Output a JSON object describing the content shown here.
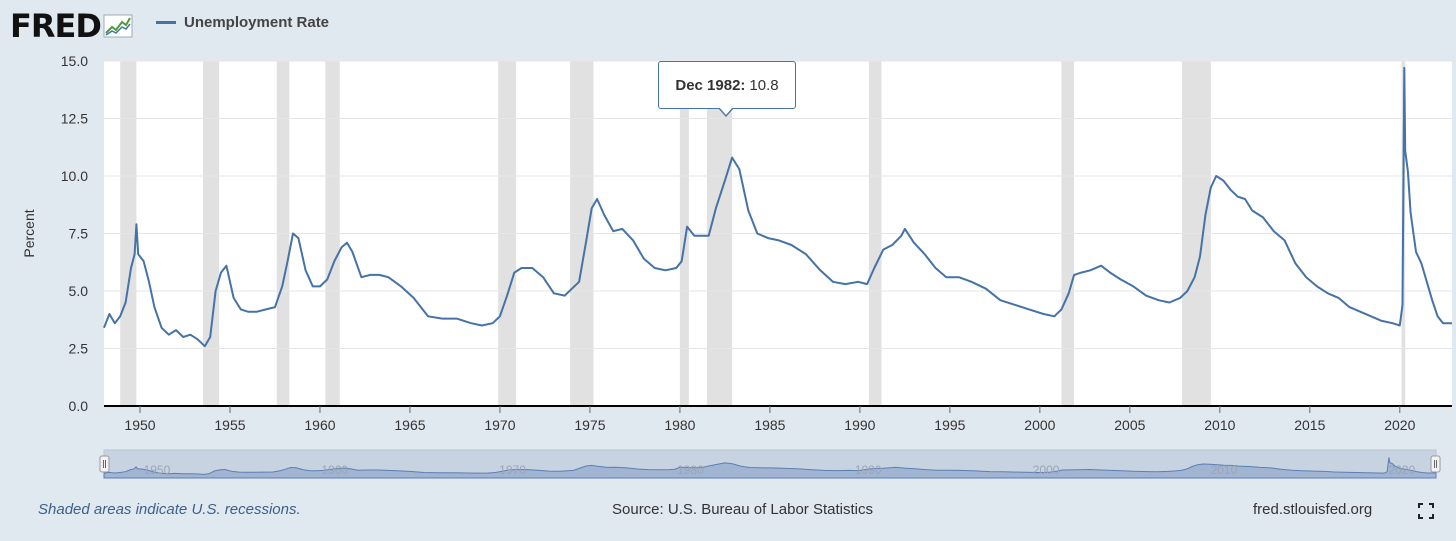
{
  "header": {
    "logo_text": "FRED",
    "series_legend": "Unemployment Rate",
    "series_color": "#4572a7"
  },
  "tooltip": {
    "date": "Dec 1982:",
    "value": "10.8"
  },
  "footer": {
    "note": "Shaded areas indicate U.S. recessions.",
    "source": "Source: U.S. Bureau of Labor Statistics",
    "site": "fred.stlouisfed.org"
  },
  "navigator": {
    "labels": [
      "1950",
      "1960",
      "1970",
      "1980",
      "1990",
      "2000",
      "2010",
      "2020"
    ]
  },
  "chart_data": {
    "type": "line",
    "title": "",
    "xlabel": "",
    "ylabel": "Percent",
    "xlim": [
      1948.0,
      2022.9
    ],
    "ylim": [
      0,
      15
    ],
    "yticks": [
      0.0,
      2.5,
      5.0,
      7.5,
      10.0,
      12.5,
      15.0
    ],
    "ytick_labels": [
      "0.0",
      "2.5",
      "5.0",
      "7.5",
      "10.0",
      "12.5",
      "15.0"
    ],
    "xticks": [
      1950,
      1955,
      1960,
      1965,
      1970,
      1975,
      1980,
      1985,
      1990,
      1995,
      2000,
      2005,
      2010,
      2015,
      2020
    ],
    "grid": true,
    "legend": "top-left",
    "recessions": [
      [
        1948.9,
        1949.8
      ],
      [
        1953.5,
        1954.4
      ],
      [
        1957.6,
        1958.3
      ],
      [
        1960.3,
        1961.1
      ],
      [
        1969.9,
        1970.9
      ],
      [
        1973.9,
        1975.2
      ],
      [
        1980.0,
        1980.5
      ],
      [
        1981.5,
        1982.9
      ],
      [
        1990.5,
        1991.2
      ],
      [
        2001.2,
        2001.9
      ],
      [
        2007.9,
        2009.5
      ],
      [
        2020.1,
        2020.3
      ]
    ],
    "series": [
      {
        "name": "Unemployment Rate",
        "x": [
          1948.0,
          1948.3,
          1948.6,
          1948.9,
          1949.2,
          1949.5,
          1949.7,
          1949.8,
          1949.9,
          1950.2,
          1950.5,
          1950.8,
          1951.2,
          1951.6,
          1952.0,
          1952.4,
          1952.8,
          1953.2,
          1953.6,
          1953.9,
          1954.2,
          1954.5,
          1954.8,
          1955.2,
          1955.6,
          1956.0,
          1956.5,
          1957.0,
          1957.5,
          1957.9,
          1958.2,
          1958.5,
          1958.8,
          1959.2,
          1959.6,
          1960.0,
          1960.4,
          1960.8,
          1961.2,
          1961.5,
          1961.8,
          1962.3,
          1962.8,
          1963.3,
          1963.8,
          1964.5,
          1965.2,
          1966.0,
          1966.8,
          1967.6,
          1968.4,
          1969.0,
          1969.6,
          1970.0,
          1970.4,
          1970.8,
          1971.2,
          1971.8,
          1972.4,
          1973.0,
          1973.6,
          1974.0,
          1974.4,
          1974.8,
          1975.1,
          1975.4,
          1975.8,
          1976.3,
          1976.8,
          1977.4,
          1978.0,
          1978.6,
          1979.2,
          1979.8,
          1980.1,
          1980.4,
          1980.8,
          1981.2,
          1981.6,
          1982.0,
          1982.5,
          1982.9,
          1983.3,
          1983.8,
          1984.3,
          1984.9,
          1985.5,
          1986.2,
          1987.0,
          1987.8,
          1988.5,
          1989.2,
          1989.9,
          1990.4,
          1990.8,
          1991.3,
          1991.8,
          1992.3,
          1992.5,
          1993.0,
          1993.6,
          1994.2,
          1994.8,
          1995.5,
          1996.2,
          1997.0,
          1997.8,
          1998.6,
          1999.4,
          2000.2,
          2000.8,
          2001.2,
          2001.6,
          2001.9,
          2002.3,
          2002.8,
          2003.4,
          2003.9,
          2004.5,
          2005.2,
          2005.9,
          2006.6,
          2007.2,
          2007.8,
          2008.2,
          2008.6,
          2008.9,
          2009.2,
          2009.5,
          2009.8,
          2010.2,
          2010.6,
          2011.0,
          2011.4,
          2011.8,
          2012.4,
          2013.0,
          2013.6,
          2014.2,
          2014.8,
          2015.4,
          2016.0,
          2016.6,
          2017.2,
          2017.8,
          2018.4,
          2019.0,
          2019.6,
          2020.0,
          2020.15,
          2020.25,
          2020.3,
          2020.45,
          2020.6,
          2020.9,
          2021.2,
          2021.5,
          2021.8,
          2022.1,
          2022.4,
          2022.9
        ],
        "values": [
          3.4,
          4.0,
          3.6,
          3.9,
          4.5,
          6.0,
          6.6,
          7.9,
          6.6,
          6.3,
          5.4,
          4.3,
          3.4,
          3.1,
          3.3,
          3.0,
          3.1,
          2.9,
          2.6,
          3.0,
          5.0,
          5.8,
          6.1,
          4.7,
          4.2,
          4.1,
          4.1,
          4.2,
          4.3,
          5.2,
          6.3,
          7.5,
          7.3,
          5.9,
          5.2,
          5.2,
          5.5,
          6.3,
          6.9,
          7.1,
          6.7,
          5.6,
          5.7,
          5.7,
          5.6,
          5.2,
          4.7,
          3.9,
          3.8,
          3.8,
          3.6,
          3.5,
          3.6,
          3.9,
          4.8,
          5.8,
          6.0,
          6.0,
          5.6,
          4.9,
          4.8,
          5.1,
          5.4,
          7.2,
          8.6,
          9.0,
          8.3,
          7.6,
          7.7,
          7.2,
          6.4,
          6.0,
          5.9,
          6.0,
          6.3,
          7.8,
          7.4,
          7.4,
          7.4,
          8.6,
          9.8,
          10.8,
          10.3,
          8.5,
          7.5,
          7.3,
          7.2,
          7.0,
          6.6,
          5.9,
          5.4,
          5.3,
          5.4,
          5.3,
          6.0,
          6.8,
          7.0,
          7.4,
          7.7,
          7.1,
          6.6,
          6.0,
          5.6,
          5.6,
          5.4,
          5.1,
          4.6,
          4.4,
          4.2,
          4.0,
          3.9,
          4.2,
          4.9,
          5.7,
          5.8,
          5.9,
          6.1,
          5.8,
          5.5,
          5.2,
          4.8,
          4.6,
          4.5,
          4.7,
          5.0,
          5.6,
          6.5,
          8.3,
          9.5,
          10.0,
          9.8,
          9.4,
          9.1,
          9.0,
          8.5,
          8.2,
          7.6,
          7.2,
          6.2,
          5.6,
          5.2,
          4.9,
          4.7,
          4.3,
          4.1,
          3.9,
          3.7,
          3.6,
          3.5,
          4.4,
          14.7,
          11.1,
          10.2,
          8.4,
          6.7,
          6.2,
          5.4,
          4.6,
          3.9,
          3.6,
          3.6
        ]
      }
    ],
    "annotations": [
      {
        "x": 1982.9,
        "y": 10.8,
        "text": "Dec 1982: 10.8"
      }
    ]
  }
}
